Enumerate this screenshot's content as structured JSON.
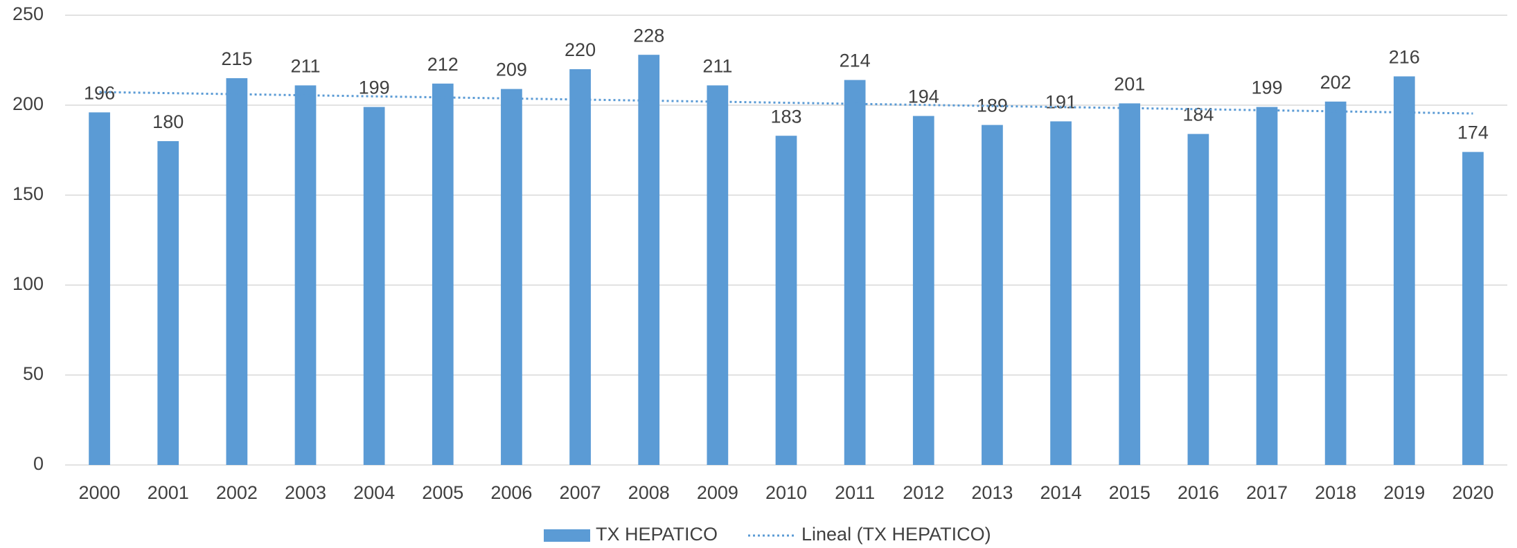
{
  "chart_data": {
    "type": "bar",
    "categories": [
      "2000",
      "2001",
      "2002",
      "2003",
      "2004",
      "2005",
      "2006",
      "2007",
      "2008",
      "2009",
      "2010",
      "2011",
      "2012",
      "2013",
      "2014",
      "2015",
      "2016",
      "2017",
      "2018",
      "2019",
      "2020"
    ],
    "series": [
      {
        "name": "TX HEPATICO",
        "color": "#5b9bd5",
        "values": [
          196,
          180,
          215,
          211,
          199,
          212,
          209,
          220,
          228,
          211,
          183,
          214,
          194,
          189,
          191,
          201,
          184,
          199,
          202,
          216,
          174
        ]
      }
    ],
    "trendline": {
      "name": "Lineal (TX HEPATICO)",
      "fit": "linear",
      "color": "#5b9bd5",
      "style": "dotted"
    },
    "ylim": [
      0,
      250
    ],
    "yticks": [
      0,
      50,
      100,
      150,
      200,
      250
    ],
    "grid": true,
    "legend": "bottom",
    "data_labels": true
  }
}
